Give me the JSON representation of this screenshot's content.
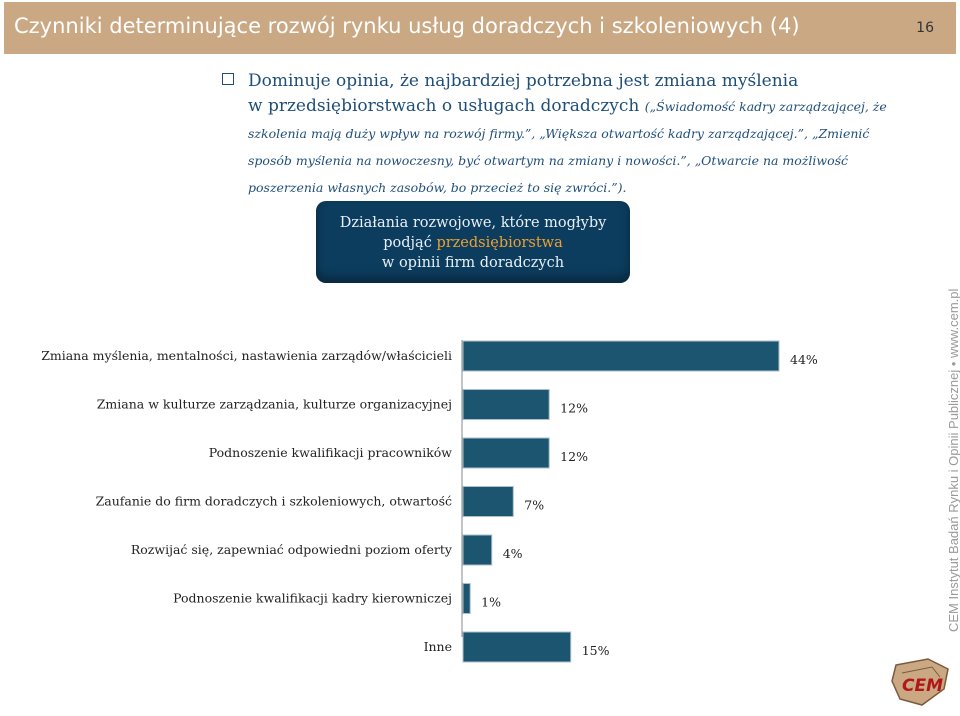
{
  "header": {
    "title": "Czynniki determinujące rozwój rynku usług doradczych i szkoleniowych (4)",
    "page_number": "16"
  },
  "bullet": {
    "main_line1": "Dominuje opinia, że najbardziej potrzebna jest zmiana myślenia",
    "main_line2": "w przedsiębiorstwach o usługach doradczych",
    "quotes": "(„Świadomość kadry zarządzającej, że szkolenia mają duży wpływ na rozwój firmy.”, „Większa otwartość kadry zarządzającej.”, „Zmienić sposób myślenia na nowoczesny, być otwartym na zmiany i nowości.”, „Otwarcie na możliwość poszerzenia własnych zasobów, bo przecież to się zwróci.”)."
  },
  "callout": {
    "line1": "Działania rozwojowe, które mogłyby",
    "line2_prefix": "podjąć ",
    "line2_accent": "przedsiębiorstwa",
    "line3": "w opinii firm doradczych"
  },
  "side_caption": "CEM Instytut Badań Rynku i Opinii Publicznej • www.cem.pl",
  "logo_text": "CEM",
  "colors": {
    "header": "#c9a883",
    "bar": "#1b5570",
    "callout": "#0c3d5e",
    "accent": "#f0a030"
  },
  "chart_data": {
    "type": "bar",
    "orientation": "horizontal",
    "categories": [
      "Zmiana myślenia, mentalności, nastawienia zarządów/właścicieli",
      "Zmiana w kulturze zarządzania, kulturze organizacyjnej",
      "Podnoszenie kwalifikacji pracowników",
      "Zaufanie do firm doradczych i szkoleniowych, otwartość",
      "Rozwijać się, zapewniać odpowiedni poziom oferty",
      "Podnoszenie kwalifikacji kadry kierowniczej",
      "Inne"
    ],
    "values": [
      44,
      12,
      12,
      7,
      4,
      1,
      15
    ],
    "value_labels": [
      "44%",
      "12%",
      "12%",
      "7%",
      "4%",
      "1%",
      "15%"
    ],
    "unit": "%",
    "xlim": [
      0,
      44
    ]
  }
}
